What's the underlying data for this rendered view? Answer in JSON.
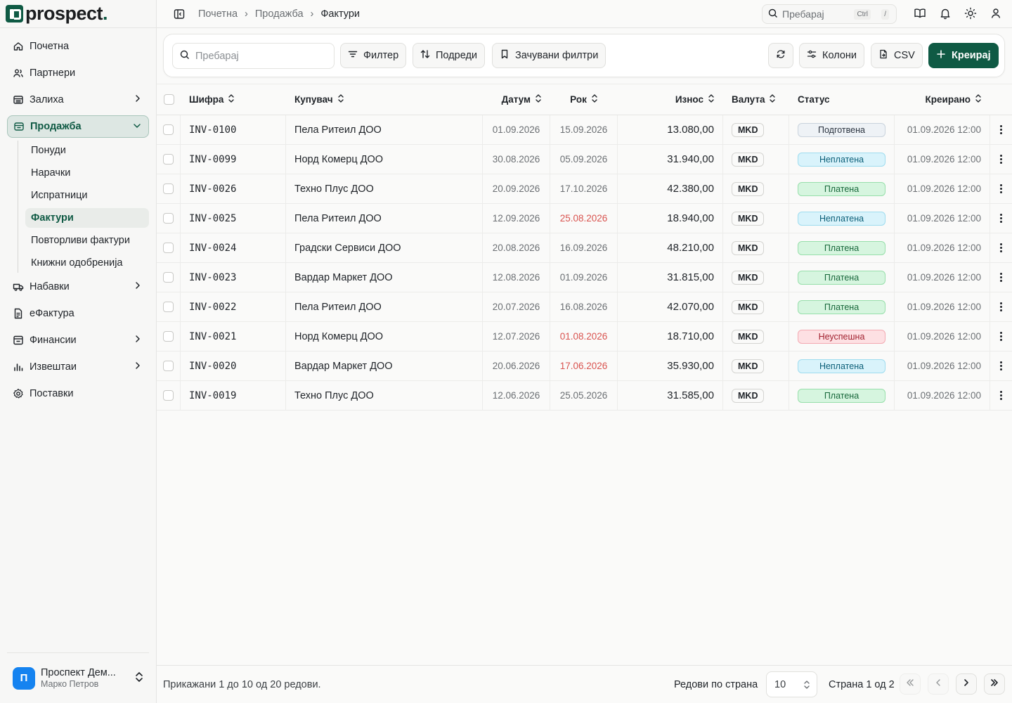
{
  "brand": {
    "name": "prospect",
    "dot": "."
  },
  "sidebar": {
    "items": [
      {
        "label": "Почетна",
        "icon": "home-icon"
      },
      {
        "label": "Партнери",
        "icon": "users-icon"
      },
      {
        "label": "Залиха",
        "icon": "warehouse-icon",
        "chevron": true
      },
      {
        "label": "Продажба",
        "icon": "wallet-icon",
        "active": true,
        "expanded": true
      },
      {
        "label": "Набавки",
        "icon": "truck-icon",
        "chevron": true
      },
      {
        "label": "еФактура",
        "icon": "document-icon"
      },
      {
        "label": "Финансии",
        "icon": "finance-icon",
        "chevron": true
      },
      {
        "label": "Извештаи",
        "icon": "bar-chart-icon",
        "chevron": true
      },
      {
        "label": "Поставки",
        "icon": "gear-icon"
      }
    ],
    "sales_sub": [
      "Понуди",
      "Нарачки",
      "Испратници",
      "Фактури",
      "Повторливи фактури",
      "Книжни одобренија"
    ],
    "active_sub": "Фактури",
    "account": {
      "initial": "П",
      "name": "Проспект Дем...",
      "user": "Марко Петров"
    }
  },
  "topbar": {
    "breadcrumbs": [
      "Почетна",
      "Продажба",
      "Фактури"
    ],
    "search_placeholder": "Пребарај",
    "kbd_ctrl": "Ctrl",
    "kbd_slash": "/"
  },
  "toolbar": {
    "search_placeholder": "Пребарај",
    "filter": "Филтер",
    "sort": "Подреди",
    "saved_filters": "Зачувани филтри",
    "columns": "Колони",
    "csv": "CSV",
    "create": "Креирај"
  },
  "table": {
    "headers": {
      "code": "Шифра",
      "customer": "Купувач",
      "date": "Датум",
      "due": "Рок",
      "amount": "Износ",
      "currency": "Валута",
      "status": "Статус",
      "created": "Креирано"
    },
    "rows": [
      {
        "code": "INV-0100",
        "customer": "Пела Ритеил ДОО",
        "date": "01.09.2026",
        "due": "15.09.2026",
        "overdue": false,
        "amount": "13.080,00",
        "currency": "MKD",
        "status": "Подготвена",
        "status_kind": "draft",
        "created": "01.09.2026 12:00"
      },
      {
        "code": "INV-0099",
        "customer": "Норд Комерц ДОО",
        "date": "30.08.2026",
        "due": "05.09.2026",
        "overdue": false,
        "amount": "31.940,00",
        "currency": "MKD",
        "status": "Неплатена",
        "status_kind": "unpaid",
        "created": "01.09.2026 12:00"
      },
      {
        "code": "INV-0026",
        "customer": "Техно Плус ДОО",
        "date": "20.09.2026",
        "due": "17.10.2026",
        "overdue": false,
        "amount": "42.380,00",
        "currency": "MKD",
        "status": "Платена",
        "status_kind": "paid",
        "created": "01.09.2026 12:00"
      },
      {
        "code": "INV-0025",
        "customer": "Пела Ритеил ДОО",
        "date": "12.09.2026",
        "due": "25.08.2026",
        "overdue": true,
        "amount": "18.940,00",
        "currency": "MKD",
        "status": "Неплатена",
        "status_kind": "unpaid",
        "created": "01.09.2026 12:00"
      },
      {
        "code": "INV-0024",
        "customer": "Градски Сервиси ДОО",
        "date": "20.08.2026",
        "due": "16.09.2026",
        "overdue": false,
        "amount": "48.210,00",
        "currency": "MKD",
        "status": "Платена",
        "status_kind": "paid",
        "created": "01.09.2026 12:00"
      },
      {
        "code": "INV-0023",
        "customer": "Вардар Маркет ДОО",
        "date": "12.08.2026",
        "due": "01.09.2026",
        "overdue": false,
        "amount": "31.815,00",
        "currency": "MKD",
        "status": "Платена",
        "status_kind": "paid",
        "created": "01.09.2026 12:00"
      },
      {
        "code": "INV-0022",
        "customer": "Пела Ритеил ДОО",
        "date": "20.07.2026",
        "due": "16.08.2026",
        "overdue": false,
        "amount": "42.070,00",
        "currency": "MKD",
        "status": "Платена",
        "status_kind": "paid",
        "created": "01.09.2026 12:00"
      },
      {
        "code": "INV-0021",
        "customer": "Норд Комерц ДОО",
        "date": "12.07.2026",
        "due": "01.08.2026",
        "overdue": true,
        "amount": "18.710,00",
        "currency": "MKD",
        "status": "Неуспешна",
        "status_kind": "failed",
        "created": "01.09.2026 12:00"
      },
      {
        "code": "INV-0020",
        "customer": "Вардар Маркет ДОО",
        "date": "20.06.2026",
        "due": "17.06.2026",
        "overdue": true,
        "amount": "35.930,00",
        "currency": "MKD",
        "status": "Неплатена",
        "status_kind": "unpaid",
        "created": "01.09.2026 12:00"
      },
      {
        "code": "INV-0019",
        "customer": "Техно Плус ДОО",
        "date": "12.06.2026",
        "due": "25.05.2026",
        "overdue": false,
        "amount": "31.585,00",
        "currency": "MKD",
        "status": "Платена",
        "status_kind": "paid",
        "created": "01.09.2026 12:00"
      }
    ]
  },
  "status_colors": {
    "draft": {
      "bg": "#eef2f6",
      "border": "#c9d3dd",
      "text": "#2b3440"
    },
    "unpaid": {
      "bg": "#d9f3fb",
      "border": "#9edcef",
      "text": "#0b5f78"
    },
    "paid": {
      "bg": "#d6f5df",
      "border": "#97dfaa",
      "text": "#17673a"
    },
    "failed": {
      "bg": "#fde0e3",
      "border": "#f3a9b2",
      "text": "#a1212f"
    }
  },
  "footer": {
    "showing": "Прикажани 1 до 10 од 20 редови.",
    "rows_per_page_label": "Редови по страна",
    "rows_per_page": "10",
    "page_info": "Страна 1 од 2"
  }
}
